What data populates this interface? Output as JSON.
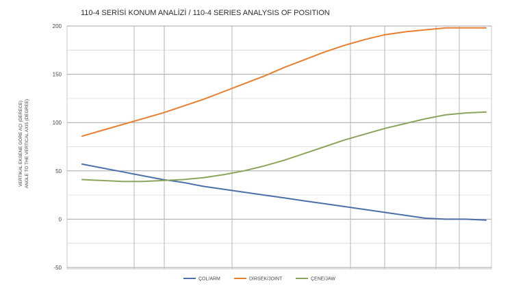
{
  "chart_data": {
    "type": "line",
    "title": "110-4 SERİSİ KONUM ANALİZİ / 110-4 SERIES ANALYSIS OF POSITION",
    "ylabel_lines": [
      "VERTİKAL EKSENE GÖRE AÇI (DERECE)",
      "ANGLE TO THE VERTICAL AXIS (DEGREE)"
    ],
    "xlabel": "",
    "ylim": [
      -100,
      400
    ],
    "yticks": [
      -50,
      0,
      50,
      100,
      150,
      200
    ],
    "ytick_labels": [
      "-50",
      "0",
      "50",
      "100",
      "150",
      "200"
    ],
    "grid": true,
    "legend_position": "bottom",
    "x": [
      0,
      1,
      2,
      3,
      4,
      5,
      6,
      7,
      8,
      9,
      10,
      11,
      12,
      13,
      14,
      15,
      16,
      17,
      18,
      19,
      20
    ],
    "series": [
      {
        "name": "ÇOL/ARM",
        "color": "#4b6fa8",
        "values": [
          57,
          53,
          49,
          45,
          41,
          38,
          34,
          31,
          28,
          25,
          22,
          19,
          16,
          13,
          10,
          7,
          4,
          1,
          0,
          0,
          -1
        ]
      },
      {
        "name": "DİRSEK/JOINT",
        "color": "#e87e2e",
        "values": [
          86,
          92,
          98,
          104,
          110,
          117,
          124,
          132,
          140,
          148,
          157,
          165,
          173,
          180,
          186,
          191,
          194,
          196,
          198,
          198,
          198
        ]
      },
      {
        "name": "ÇENE/JAW",
        "color": "#8aa55a",
        "values": [
          41,
          40,
          39,
          39,
          40,
          41,
          43,
          46,
          50,
          55,
          61,
          68,
          75,
          82,
          88,
          94,
          99,
          104,
          108,
          110,
          111
        ]
      }
    ]
  }
}
